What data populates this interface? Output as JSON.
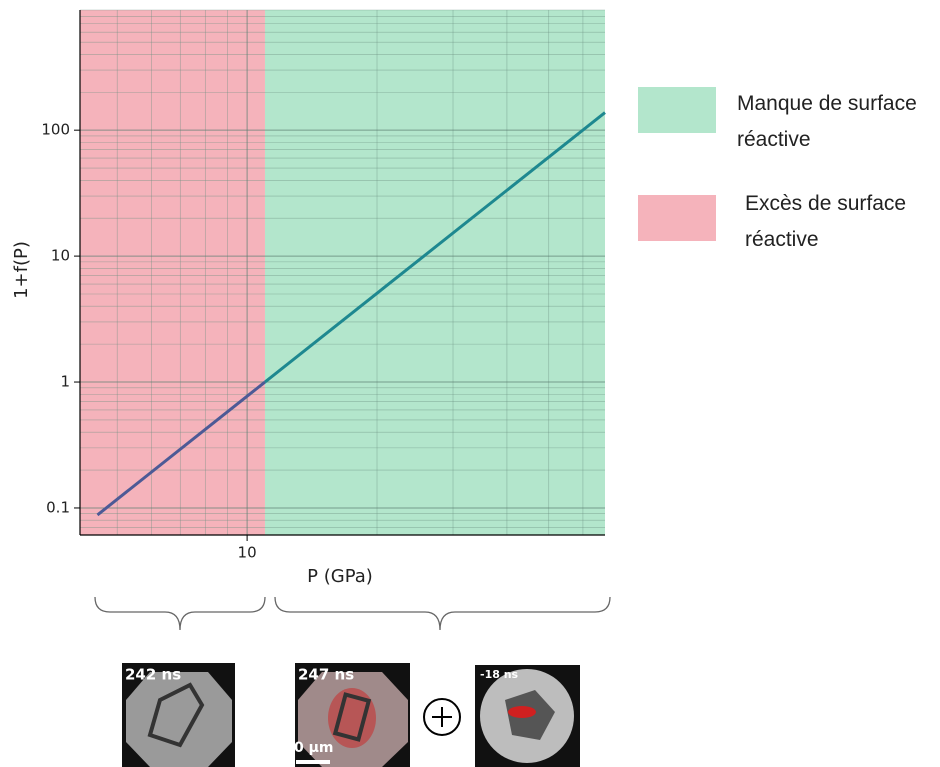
{
  "chart_data": {
    "type": "line",
    "xlabel": "P (GPa)",
    "ylabel": "1+f(P)",
    "xscale": "log",
    "yscale": "log",
    "xlim": [
      4.1,
      67.5
    ],
    "ylim": [
      0.061,
      900
    ],
    "xticks": [
      10
    ],
    "yticks": [
      0.1,
      1,
      10,
      100
    ],
    "xminorticks": [
      5,
      6,
      7,
      8,
      9,
      20,
      30,
      40,
      50,
      60
    ],
    "yminorticks": [
      0.07,
      0.08,
      0.09,
      0.2,
      0.3,
      0.4,
      0.5,
      0.6,
      0.7,
      0.8,
      0.9,
      2,
      3,
      4,
      5,
      6,
      7,
      8,
      9,
      20,
      30,
      40,
      50,
      60,
      70,
      80,
      90,
      200,
      300,
      400,
      500,
      600,
      700,
      800,
      900
    ],
    "grid": true,
    "regions": [
      {
        "name": "Manque de surface réactive",
        "color": "#b3e6cc",
        "x": [
          11,
          67.5
        ]
      },
      {
        "name": "Excès de surface réactive",
        "color": "#f5b3bb",
        "x": [
          4.1,
          11
        ]
      }
    ],
    "series": [
      {
        "color": "#4d5a96",
        "x": [
          4.5,
          11
        ],
        "values": [
          0.088,
          1
        ]
      },
      {
        "color": "#1e8890",
        "x": [
          11,
          67.5
        ],
        "values": [
          1,
          138
        ]
      }
    ]
  },
  "figures": {
    "images": [
      "242 ns",
      "247 ns",
      "-18 ns"
    ],
    "scale_bar": "0 μm"
  }
}
